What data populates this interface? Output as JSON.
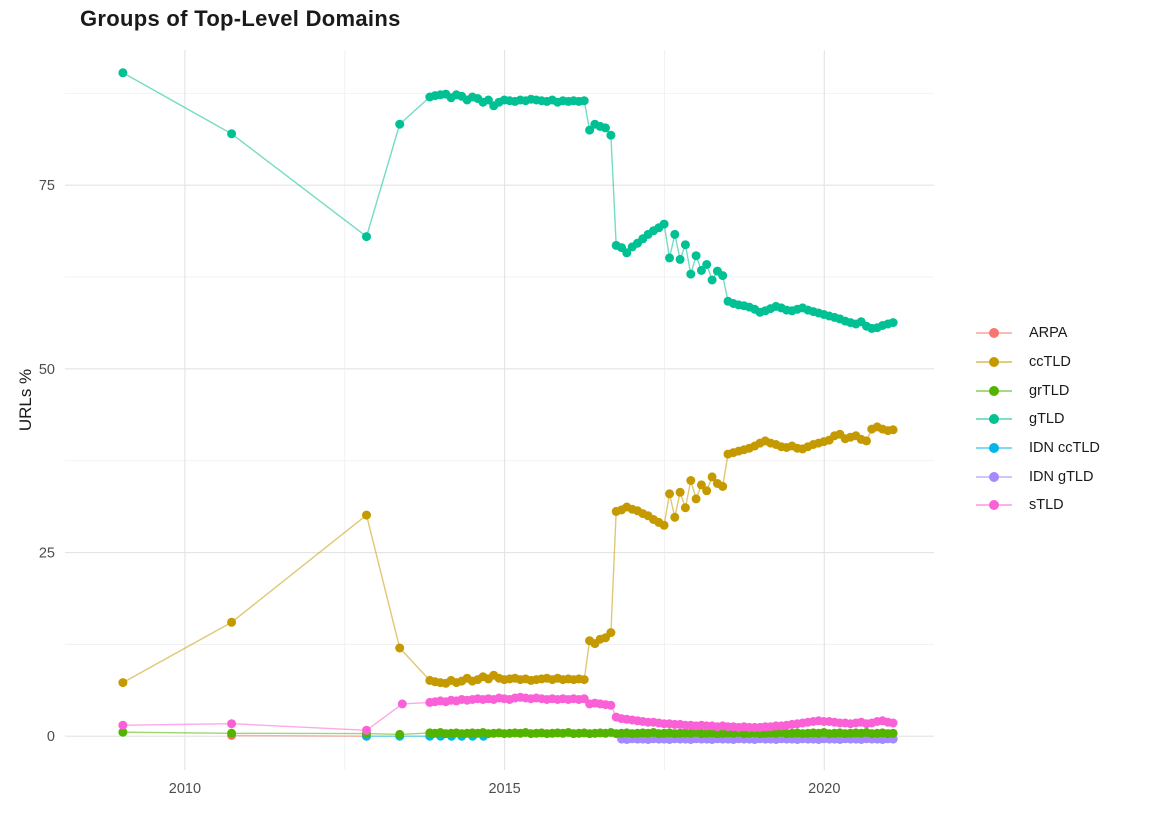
{
  "page": {
    "background": "#ffffff"
  },
  "styles": {
    "major_grid": "#e4e4e4",
    "minor_grid": "#f1f1f1",
    "tick_color": "#4d4d4d",
    "title_color": "#1a1a1a"
  },
  "chart_data": {
    "type": "line",
    "title": "Groups of Top-Level Domains",
    "xlabel": "",
    "ylabel": "URLs %",
    "x_ticks": {
      "values": [
        2010,
        2015,
        2020
      ],
      "labels": [
        "2010",
        "2015",
        "2020"
      ]
    },
    "y_ticks": {
      "values": [
        0,
        25,
        50,
        75
      ],
      "labels": [
        "0",
        "25",
        "50",
        "75"
      ]
    },
    "x_minor": [
      2012.5,
      2017.5
    ],
    "y_minor": [
      12.5,
      37.5,
      62.5,
      87.5
    ],
    "xlim": [
      2008.125,
      2021.716
    ],
    "ylim": [
      -4.6,
      93.4
    ],
    "grid": true,
    "legend_position": "right",
    "point_radius": 4.5,
    "line_opacity": 0.55,
    "series": [
      {
        "name": "ARPA",
        "color": "#F8766D",
        "z": 1,
        "points": [
          [
            2010.73,
            0.1
          ],
          [
            2012.84,
            0.0
          ]
        ]
      },
      {
        "name": "ccTLD",
        "color": "#C49A00",
        "z": 5,
        "points": [
          [
            2009.03,
            7.3
          ],
          [
            2010.73,
            15.5
          ],
          [
            2012.84,
            30.1
          ],
          [
            2013.36,
            12.0
          ]
        ],
        "dense": {
          "start": 2013.83,
          "step": 0.0833,
          "values": [
            7.6,
            7.4,
            7.3,
            7.2,
            7.6,
            7.3,
            7.5,
            7.9,
            7.5,
            7.7,
            8.1,
            7.8,
            8.3,
            7.9,
            7.7,
            7.8,
            7.9,
            7.7,
            7.8,
            7.6,
            7.7,
            7.8,
            7.9,
            7.7,
            7.9,
            7.7,
            7.8,
            7.7,
            7.8,
            7.7,
            13.0,
            12.6,
            13.2,
            13.4,
            14.1,
            30.6,
            30.8,
            31.2,
            30.9,
            30.7,
            30.3,
            30.0,
            29.5,
            29.1,
            28.7,
            33.0,
            29.8,
            33.2,
            31.1,
            34.8,
            32.3,
            34.2,
            33.4,
            35.3,
            34.4,
            34.0,
            38.4,
            38.6,
            38.8,
            39.0,
            39.2,
            39.5,
            39.9,
            40.2,
            39.9,
            39.7,
            39.4,
            39.3,
            39.5,
            39.2,
            39.1,
            39.4,
            39.7,
            39.9,
            40.1,
            40.3,
            40.9,
            41.1,
            40.5,
            40.7,
            40.9,
            40.4,
            40.2,
            41.8,
            42.1,
            41.8,
            41.6,
            41.7
          ]
        }
      },
      {
        "name": "grTLD",
        "color": "#53B400",
        "z": 4,
        "points": [
          [
            2009.03,
            0.55
          ],
          [
            2010.73,
            0.4
          ],
          [
            2012.84,
            0.35
          ],
          [
            2013.36,
            0.25
          ]
        ],
        "dense": {
          "start": 2013.83,
          "step": 0.0833,
          "values": [
            0.45,
            0.4,
            0.5,
            0.35,
            0.4,
            0.45,
            0.35,
            0.4,
            0.45,
            0.4,
            0.5,
            0.35,
            0.4,
            0.45,
            0.35,
            0.4,
            0.45,
            0.4,
            0.5,
            0.35,
            0.4,
            0.45,
            0.35,
            0.4,
            0.45,
            0.4,
            0.5,
            0.35,
            0.4,
            0.45,
            0.35,
            0.4,
            0.45,
            0.4,
            0.5,
            0.35,
            0.4,
            0.45,
            0.35,
            0.4,
            0.45,
            0.4,
            0.5,
            0.35,
            0.4,
            0.45,
            0.35,
            0.4,
            0.45,
            0.4,
            0.5,
            0.35,
            0.4,
            0.45,
            0.35,
            0.4,
            0.45,
            0.4,
            0.5,
            0.35,
            0.4,
            0.45,
            0.35,
            0.4,
            0.45,
            0.4,
            0.5,
            0.35,
            0.4,
            0.45,
            0.35,
            0.4,
            0.45,
            0.4,
            0.5,
            0.35,
            0.4,
            0.45,
            0.35,
            0.4,
            0.45,
            0.4,
            0.5,
            0.35,
            0.4,
            0.45,
            0.35,
            0.4
          ]
        }
      },
      {
        "name": "gTLD",
        "color": "#00C094",
        "z": 6,
        "points": [
          [
            2009.03,
            90.3
          ],
          [
            2010.73,
            82.0
          ],
          [
            2012.84,
            68.0
          ],
          [
            2013.36,
            83.3
          ]
        ],
        "dense": {
          "start": 2013.83,
          "step": 0.0833,
          "values": [
            87.0,
            87.2,
            87.3,
            87.4,
            86.9,
            87.3,
            87.1,
            86.6,
            87.0,
            86.8,
            86.3,
            86.6,
            85.8,
            86.3,
            86.6,
            86.5,
            86.4,
            86.6,
            86.5,
            86.7,
            86.6,
            86.5,
            86.4,
            86.6,
            86.3,
            86.5,
            86.4,
            86.5,
            86.4,
            86.5,
            82.5,
            83.3,
            83.0,
            82.8,
            81.8,
            66.8,
            66.5,
            65.8,
            66.6,
            67.1,
            67.7,
            68.3,
            68.8,
            69.2,
            69.7,
            65.1,
            68.3,
            64.9,
            66.9,
            62.9,
            65.4,
            63.4,
            64.2,
            62.1,
            63.3,
            62.7,
            59.2,
            58.9,
            58.7,
            58.6,
            58.4,
            58.1,
            57.7,
            57.9,
            58.2,
            58.5,
            58.3,
            58.0,
            57.9,
            58.1,
            58.3,
            58.0,
            57.8,
            57.6,
            57.4,
            57.2,
            57.0,
            56.8,
            56.5,
            56.3,
            56.1,
            56.4,
            55.8,
            55.5,
            55.6,
            55.9,
            56.1,
            56.3
          ]
        }
      },
      {
        "name": "IDN ccTLD",
        "color": "#00B6EB",
        "z": 2,
        "points": [
          [
            2012.84,
            0.0
          ],
          [
            2013.36,
            0.0
          ],
          [
            2013.83,
            0.0
          ],
          [
            2014.0,
            0.0
          ],
          [
            2014.17,
            0.0
          ],
          [
            2014.33,
            0.0
          ],
          [
            2014.5,
            0.0
          ],
          [
            2014.67,
            0.0
          ]
        ]
      },
      {
        "name": "IDN gTLD",
        "color": "#A58AFF",
        "z": 3,
        "points": [],
        "dense": {
          "start": 2016.83,
          "step": 0.0833,
          "values": [
            -0.4,
            -0.45,
            -0.35,
            -0.4,
            -0.4,
            -0.45,
            -0.35,
            -0.4,
            -0.4,
            -0.45,
            -0.35,
            -0.4,
            -0.4,
            -0.45,
            -0.35,
            -0.4,
            -0.4,
            -0.45,
            -0.35,
            -0.4,
            -0.4,
            -0.45,
            -0.35,
            -0.4,
            -0.4,
            -0.45,
            -0.35,
            -0.4,
            -0.4,
            -0.45,
            -0.35,
            -0.4,
            -0.4,
            -0.45,
            -0.35,
            -0.4,
            -0.4,
            -0.45,
            -0.35,
            -0.4,
            -0.4,
            -0.45,
            -0.35,
            -0.4,
            -0.4,
            -0.45,
            -0.35,
            -0.4,
            -0.4,
            -0.45,
            -0.35,
            -0.4
          ]
        }
      },
      {
        "name": "sTLD",
        "color": "#FB61D7",
        "z": 7,
        "points": [
          [
            2009.03,
            1.5
          ],
          [
            2010.73,
            1.7
          ],
          [
            2012.84,
            0.8
          ],
          [
            2013.4,
            4.4
          ]
        ],
        "dense": {
          "start": 2013.83,
          "step": 0.0833,
          "values": [
            4.6,
            4.7,
            4.8,
            4.7,
            4.9,
            4.8,
            5.0,
            4.9,
            5.0,
            5.1,
            5.0,
            5.1,
            5.0,
            5.2,
            5.1,
            5.0,
            5.2,
            5.3,
            5.2,
            5.1,
            5.2,
            5.1,
            5.0,
            5.1,
            5.0,
            5.1,
            5.0,
            5.1,
            5.0,
            5.1,
            4.4,
            4.5,
            4.4,
            4.3,
            4.2,
            2.6,
            2.4,
            2.3,
            2.2,
            2.1,
            2.0,
            1.9,
            1.9,
            1.8,
            1.7,
            1.7,
            1.6,
            1.6,
            1.5,
            1.5,
            1.4,
            1.5,
            1.4,
            1.4,
            1.3,
            1.4,
            1.3,
            1.3,
            1.2,
            1.3,
            1.2,
            1.2,
            1.2,
            1.3,
            1.3,
            1.4,
            1.4,
            1.5,
            1.6,
            1.7,
            1.8,
            1.9,
            2.0,
            2.1,
            2.0,
            2.0,
            1.9,
            1.8,
            1.8,
            1.7,
            1.8,
            1.9,
            1.7,
            1.8,
            2.0,
            2.1,
            1.9,
            1.8
          ]
        }
      }
    ]
  }
}
